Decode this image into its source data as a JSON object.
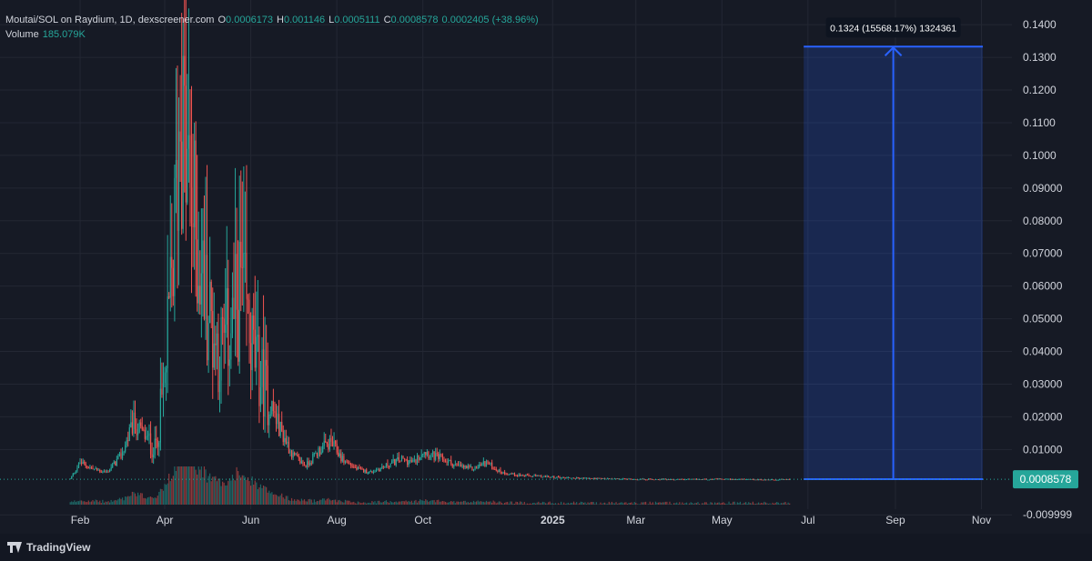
{
  "legend": {
    "symbol": "Moutai/SOL on Raydium, 1D, dexscreener.com",
    "open_label": "O",
    "open": "0.0006173",
    "high_label": "H",
    "high": "0.001146",
    "low_label": "L",
    "low": "0.0005111",
    "close_label": "C",
    "close": "0.0008578",
    "change": "0.0002405 (+38.96%)",
    "volume_label": "Volume",
    "volume": "185.079K"
  },
  "price_axis": {
    "ticks": [
      "0.1400",
      "0.1300",
      "0.1200",
      "0.1100",
      "0.1000",
      "0.09000",
      "0.08000",
      "0.07000",
      "0.06000",
      "0.05000",
      "0.04000",
      "0.03000",
      "0.02000",
      "0.01000",
      "-0.009999"
    ],
    "last_price": "0.0008578"
  },
  "time_axis": {
    "ticks": [
      "Feb",
      "Apr",
      "Jun",
      "Aug",
      "Oct",
      "2025",
      "Mar",
      "May",
      "Jul",
      "Sep",
      "Nov"
    ]
  },
  "measure_tool": {
    "label": "0.1324 (15568.17%) 1324361",
    "top_price": 0.1333,
    "bottom_price": 0.0009
  },
  "colors": {
    "up": "#26a69a",
    "down": "#ef5350",
    "accent": "#2962ff",
    "background": "#161a25",
    "price_badge": "#26a69a"
  },
  "branding": {
    "logo_text": "TradingView"
  },
  "chart_data": {
    "type": "candlestick",
    "title": "Moutai/SOL on Raydium, 1D, dexscreener.com",
    "ylim": [
      -0.0105,
      0.142
    ],
    "price_envelope": {
      "dates": [
        "2024-01-25",
        "2024-02-01",
        "2024-02-10",
        "2024-02-20",
        "2024-03-01",
        "2024-03-10",
        "2024-03-18",
        "2024-03-25",
        "2024-04-01",
        "2024-04-05",
        "2024-04-08",
        "2024-04-12",
        "2024-04-16",
        "2024-04-20",
        "2024-04-25",
        "2024-05-01",
        "2024-05-06",
        "2024-05-10",
        "2024-05-15",
        "2024-05-20",
        "2024-05-25",
        "2024-05-31",
        "2024-06-05",
        "2024-06-12",
        "2024-06-20",
        "2024-07-01",
        "2024-07-10",
        "2024-07-20",
        "2024-07-28",
        "2024-08-05",
        "2024-08-15",
        "2024-08-25",
        "2024-09-05",
        "2024-09-15",
        "2024-09-25",
        "2024-10-01",
        "2024-10-08",
        "2024-10-15",
        "2024-10-25",
        "2024-11-05",
        "2024-11-15",
        "2024-11-25",
        "2024-12-10",
        "2025-01-01",
        "2025-01-20",
        "2025-02-10",
        "2025-03-01",
        "2025-04-01",
        "2025-05-01",
        "2025-06-01",
        "2025-06-18"
      ],
      "values": [
        0.001,
        0.006,
        0.004,
        0.003,
        0.008,
        0.018,
        0.014,
        0.01,
        0.03,
        0.055,
        0.075,
        0.12,
        0.095,
        0.085,
        0.07,
        0.055,
        0.045,
        0.04,
        0.044,
        0.05,
        0.06,
        0.045,
        0.035,
        0.028,
        0.018,
        0.008,
        0.005,
        0.01,
        0.012,
        0.007,
        0.004,
        0.003,
        0.005,
        0.007,
        0.006,
        0.01,
        0.008,
        0.007,
        0.005,
        0.004,
        0.006,
        0.003,
        0.002,
        0.0015,
        0.0012,
        0.001,
        0.0009,
        0.0008,
        0.0009,
        0.0007,
        0.0008578
      ]
    }
  }
}
